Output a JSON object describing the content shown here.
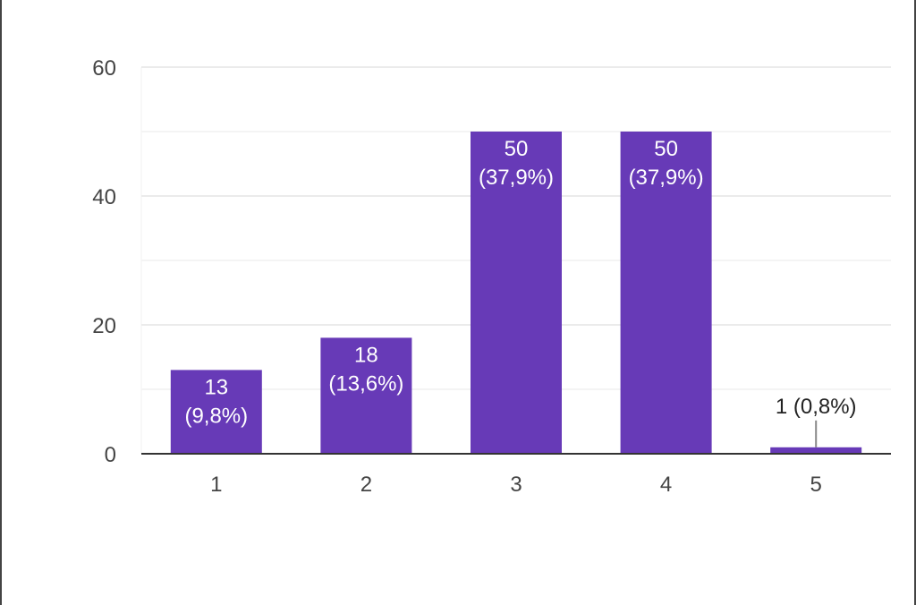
{
  "chart_data": {
    "type": "bar",
    "categories": [
      "1",
      "2",
      "3",
      "4",
      "5"
    ],
    "values": [
      13,
      18,
      50,
      50,
      1
    ],
    "data_labels": [
      [
        "13",
        "(9,8%)"
      ],
      [
        "18",
        "(13,6%)"
      ],
      [
        "50",
        "(37,9%)"
      ],
      [
        "50",
        "(37,9%)"
      ],
      [
        "1 (0,8%)"
      ]
    ],
    "y_ticks": [
      "0",
      "20",
      "40",
      "60"
    ],
    "ylim": [
      0,
      60
    ],
    "grid": true,
    "title": "",
    "xlabel": "",
    "ylabel": "",
    "bar_color": "#673ab7",
    "grid_color": "#ebebeb",
    "axis_color": "#333333"
  }
}
